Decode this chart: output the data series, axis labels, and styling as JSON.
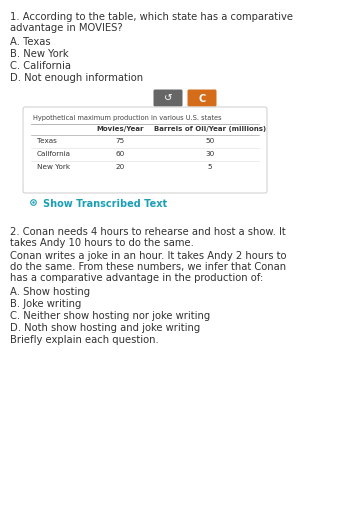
{
  "bg_color": "#ffffff",
  "q1_text_line1": "1. According to the table, which state has a comparative",
  "q1_text_line2": "advantage in MOVIES?",
  "q1_options": [
    "A. Texas",
    "B. New York",
    "C. California",
    "D. Not enough information"
  ],
  "table_title": "Hypothetical maximum production in various U.S. states",
  "table_headers": [
    "Movies/Year",
    "Barrels of Oil/Year (millions)"
  ],
  "table_rows": [
    [
      "Texas",
      "75",
      "50"
    ],
    [
      "California",
      "60",
      "30"
    ],
    [
      "New York",
      "20",
      "5"
    ]
  ],
  "show_transcribed_color": "#1a9fb5",
  "show_transcribed_text": "Show Transcribed Text",
  "btn1_color": "#666666",
  "btn2_color": "#d46c1a",
  "q2_text_line1": "2. Conan needs 4 hours to rehearse and host a show. It",
  "q2_text_line2": "takes Andy 10 hours to do the same.",
  "q2_text_line3": "Conan writes a joke in an hour. It takes Andy 2 hours to",
  "q2_text_line4": "do the same. From these numbers, we infer that Conan",
  "q2_text_line5": "has a comparative advantage in the production of:",
  "q2_options": [
    "A. Show hosting",
    "B. Joke writing",
    "C. Neither show hosting nor joke writing",
    "D. Noth show hosting and joke writing",
    "Briefly explain each question."
  ],
  "text_color": "#333333",
  "text_color_light": "#555555"
}
